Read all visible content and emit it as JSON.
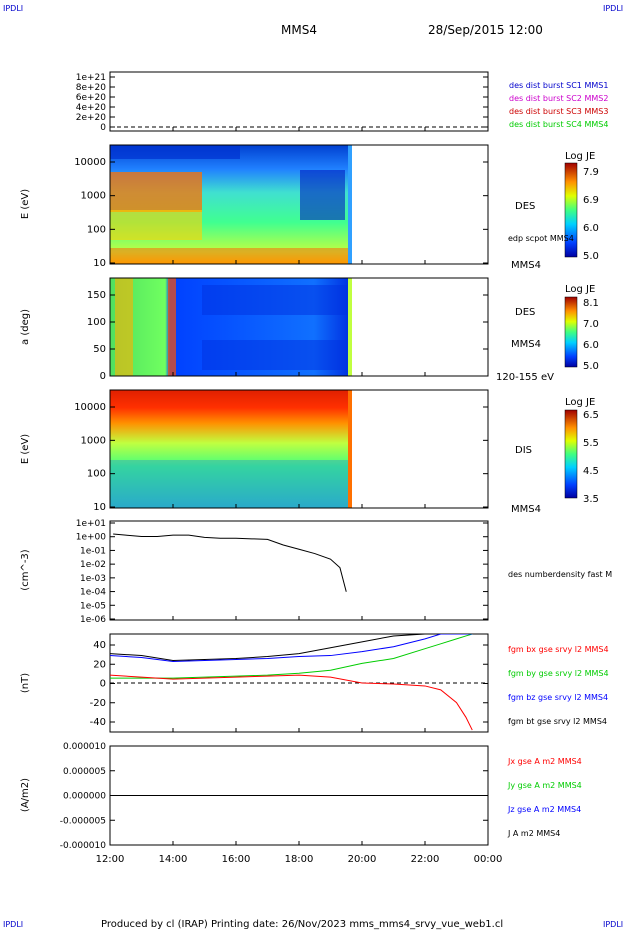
{
  "corner_labels": [
    "IPDLI",
    "IPDLI",
    "IPDLI",
    "IPDLI"
  ],
  "header": {
    "spacecraft": "MMS4",
    "datetime": "28/Sep/2015 12:00"
  },
  "footer": "Produced by cl (IRAP)   Printing date: 26/Nov/2023   mms_mms4_srvy_vue_web1.cl",
  "colors": {
    "bx": "#ff0000",
    "by": "#00cc00",
    "bz": "#0000ff",
    "bt": "#000000",
    "mms1": "#0000cc",
    "mms2": "#cc00cc",
    "mms3": "#cc0000",
    "mms4": "#00cc00"
  },
  "x_axis": {
    "ticks": [
      "12:00",
      "14:00",
      "16:00",
      "18:00",
      "20:00",
      "22:00",
      "00:00"
    ],
    "range_hours": [
      12,
      24
    ]
  },
  "panels": {
    "p1": {
      "yticks": [
        "1e+21",
        "8e+20",
        "6e+20",
        "4e+20",
        "2e+20",
        "0"
      ],
      "legend": [
        "des dist burst SC1 MMS1",
        "des dist burst SC2 MMS2",
        "des dist burst SC3 MMS3",
        "des dist burst SC4 MMS4"
      ]
    },
    "p2": {
      "ylabel": "E (eV)",
      "yticks": [
        "10000",
        "1000",
        "100",
        "10"
      ],
      "right_text": [
        "DES",
        "edp scpot MMS4",
        "MMS4"
      ],
      "cbar_title": "Log JE",
      "cbar_ticks": [
        "7.9",
        "6.9",
        "6.0",
        "5.0"
      ]
    },
    "p3": {
      "ylabel": "a (deg)",
      "yticks": [
        "150",
        "100",
        "50",
        "0"
      ],
      "right_text": [
        "DES",
        "MMS4",
        "120-155 eV"
      ],
      "cbar_title": "Log JE",
      "cbar_ticks": [
        "8.1",
        "7.0",
        "6.0",
        "5.0"
      ]
    },
    "p4": {
      "ylabel": "E (eV)",
      "yticks": [
        "10000",
        "1000",
        "100",
        "10"
      ],
      "right_text": [
        "DIS",
        "MMS4"
      ],
      "cbar_title": "Log JE",
      "cbar_ticks": [
        "6.5",
        "5.5",
        "4.5",
        "3.5"
      ]
    },
    "p5": {
      "ylabel": "(cm^-3)",
      "yticks": [
        "1e+01",
        "1e+00",
        "1e-01",
        "1e-02",
        "1e-03",
        "1e-04",
        "1e-05",
        "1e-06"
      ],
      "legend": [
        "des numberdensity fast M"
      ]
    },
    "p6": {
      "ylabel": "(nT)",
      "yticks": [
        "40",
        "20",
        "0",
        "-20",
        "-40"
      ],
      "legend": [
        "fgm bx gse srvy l2 MMS4",
        "fgm by gse srvy l2 MMS4",
        "fgm bz gse srvy l2 MMS4",
        "fgm bt gse srvy l2 MMS4"
      ]
    },
    "p7": {
      "ylabel": "(A/m2)",
      "yticks": [
        "0.000010",
        "0.000005",
        "0.000000",
        "-0.000005",
        "-0.000010"
      ],
      "legend": [
        "Jx gse A m2 MMS4",
        "Jy gse A m2 MMS4",
        "Jz gse A m2 MMS4",
        "J A m2 MMS4"
      ]
    }
  },
  "chart_data": {
    "type": "line",
    "title": "MMS4 28/Sep/2015 12:00",
    "x_unit": "hours",
    "density": {
      "ylabel": "(cm^-3)",
      "yscale": "log",
      "ylim": [
        1e-06,
        10
      ],
      "x": [
        12.1,
        12.5,
        13.0,
        13.5,
        14.0,
        14.5,
        15.0,
        15.5,
        16.0,
        16.5,
        17.0,
        17.5,
        18.0,
        18.5,
        19.0,
        19.3,
        19.5
      ],
      "values": [
        1.2,
        1.0,
        0.8,
        0.8,
        1.0,
        1.0,
        0.7,
        0.6,
        0.6,
        0.55,
        0.5,
        0.2,
        0.1,
        0.05,
        0.02,
        0.005,
        0.0001
      ]
    },
    "magnetic_field": {
      "ylabel": "(nT)",
      "ylim": [
        -50,
        50
      ],
      "x": [
        12.0,
        13.0,
        14.0,
        15.0,
        16.0,
        17.0,
        18.0,
        19.0,
        20.0,
        21.0,
        22.0,
        22.5,
        23.0,
        23.3,
        23.5
      ],
      "series": [
        {
          "name": "fgm bx gse srvy l2 MMS4",
          "values": [
            8,
            6,
            4,
            5,
            6,
            7,
            8,
            6,
            0,
            -1,
            -3,
            -7,
            -20,
            -35,
            -48
          ]
        },
        {
          "name": "fgm by gse srvy l2 MMS4",
          "values": [
            5,
            5,
            5,
            6,
            7,
            8,
            10,
            13,
            20,
            25,
            35,
            40,
            45,
            48,
            50
          ]
        },
        {
          "name": "fgm bz gse srvy l2 MMS4",
          "values": [
            28,
            26,
            22,
            23,
            24,
            25,
            27,
            28,
            32,
            37,
            45,
            50,
            50,
            50,
            50
          ]
        },
        {
          "name": "fgm bt gse srvy l2 MMS4",
          "values": [
            30,
            28,
            23,
            24,
            25,
            27,
            30,
            36,
            42,
            48,
            50,
            50,
            50,
            50,
            50
          ]
        }
      ]
    },
    "current_density": {
      "ylabel": "(A/m2)",
      "ylim": [
        -1e-05,
        1e-05
      ],
      "x": [
        12.0,
        24.0
      ],
      "values": [
        0,
        0
      ]
    },
    "spectrograms": [
      {
        "ylabel": "E (eV)",
        "label": "DES",
        "colorbar": "Log JE",
        "crange": [
          5.0,
          7.9
        ]
      },
      {
        "ylabel": "a (deg)",
        "label": "DES",
        "colorbar": "Log JE",
        "crange": [
          5.0,
          8.1
        ]
      },
      {
        "ylabel": "E (eV)",
        "label": "DIS",
        "colorbar": "Log JE",
        "crange": [
          3.5,
          6.5
        ]
      }
    ]
  }
}
